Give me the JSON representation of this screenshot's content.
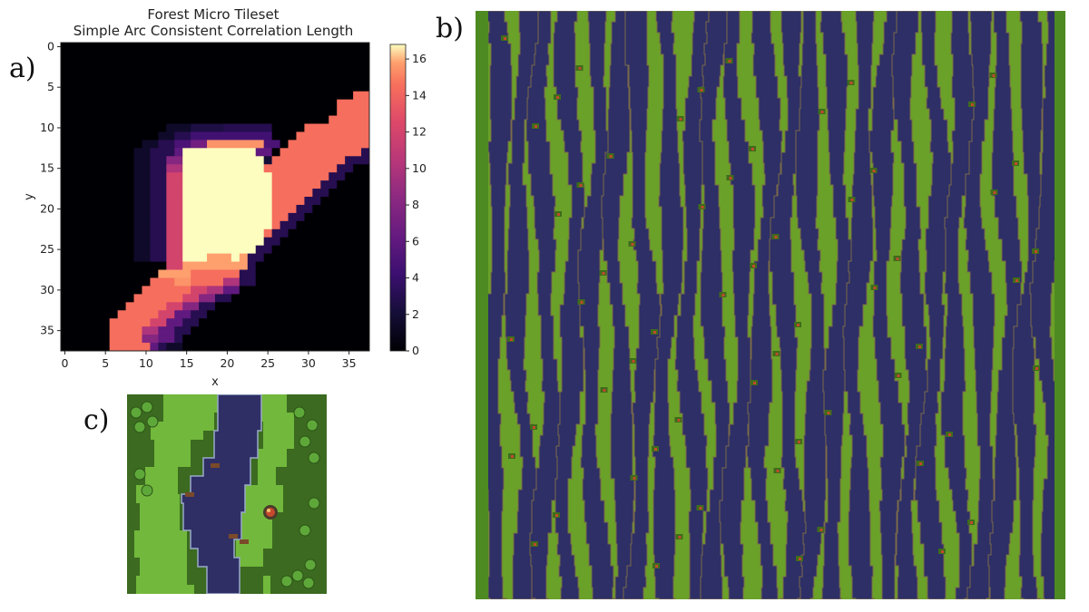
{
  "panel_labels": {
    "a": "a)",
    "b": "b)",
    "c": "c)"
  },
  "chart_data": {
    "type": "heatmap",
    "title": "Forest Micro Tileset",
    "subtitle": "Simple Arc Consistent Correlation Length",
    "xlabel": "x",
    "ylabel": "y",
    "xlim": [
      -0.5,
      37.5
    ],
    "ylim": [
      37.5,
      -0.5
    ],
    "xticks": [
      0,
      5,
      10,
      15,
      20,
      25,
      30,
      35
    ],
    "yticks": [
      0,
      5,
      10,
      15,
      20,
      25,
      30,
      35
    ],
    "colormap": "magma",
    "colorbar": {
      "min": 0,
      "max": 16.8,
      "ticks": [
        0,
        2,
        4,
        6,
        8,
        10,
        12,
        14,
        16
      ]
    },
    "grid": false,
    "shape": [
      38,
      38
    ],
    "row_runs": [
      [
        [
          0,
          38,
          0
        ]
      ],
      [
        [
          0,
          38,
          0
        ]
      ],
      [
        [
          0,
          38,
          0
        ]
      ],
      [
        [
          0,
          38,
          0
        ]
      ],
      [
        [
          0,
          38,
          0
        ]
      ],
      [
        [
          0,
          38,
          0
        ]
      ],
      [
        [
          0,
          36,
          0
        ],
        [
          36,
          38,
          14.5
        ]
      ],
      [
        [
          0,
          34,
          0
        ],
        [
          34,
          38,
          14.5
        ]
      ],
      [
        [
          0,
          34,
          0
        ],
        [
          34,
          38,
          14.5
        ]
      ],
      [
        [
          0,
          33,
          0
        ],
        [
          33,
          38,
          14.5
        ]
      ],
      [
        [
          0,
          13,
          0
        ],
        [
          13,
          16,
          1.5
        ],
        [
          16,
          20,
          2.5
        ],
        [
          20,
          26,
          3
        ],
        [
          26,
          30,
          0
        ],
        [
          30,
          38,
          14.5
        ]
      ],
      [
        [
          0,
          12,
          0
        ],
        [
          12,
          14,
          1.5
        ],
        [
          14,
          16,
          3
        ],
        [
          16,
          26,
          4.5
        ],
        [
          26,
          29,
          0
        ],
        [
          29,
          38,
          14.5
        ]
      ],
      [
        [
          0,
          10,
          0
        ],
        [
          10,
          12,
          1.5
        ],
        [
          12,
          14,
          3
        ],
        [
          14,
          16,
          5
        ],
        [
          16,
          18,
          7
        ],
        [
          18,
          25,
          15.5
        ],
        [
          25,
          27,
          5
        ],
        [
          27,
          28,
          0
        ],
        [
          28,
          38,
          14.5
        ]
      ],
      [
        [
          0,
          9,
          0
        ],
        [
          9,
          11,
          1.5
        ],
        [
          11,
          14,
          3
        ],
        [
          14,
          15,
          6
        ],
        [
          15,
          24,
          16.8
        ],
        [
          24,
          26,
          6
        ],
        [
          26,
          27,
          0
        ],
        [
          27,
          37,
          14.5
        ],
        [
          37,
          38,
          3
        ]
      ],
      [
        [
          0,
          9,
          0
        ],
        [
          9,
          11,
          1.5
        ],
        [
          11,
          13,
          3
        ],
        [
          13,
          15,
          8
        ],
        [
          15,
          25,
          16.8
        ],
        [
          25,
          26,
          2
        ],
        [
          26,
          35,
          14.5
        ],
        [
          35,
          38,
          3
        ]
      ],
      [
        [
          0,
          9,
          0
        ],
        [
          9,
          11,
          1.5
        ],
        [
          11,
          13,
          3
        ],
        [
          13,
          15,
          10
        ],
        [
          15,
          25,
          16.8
        ],
        [
          25,
          34,
          14.5
        ],
        [
          34,
          36,
          3
        ],
        [
          36,
          38,
          0
        ]
      ],
      [
        [
          0,
          9,
          0
        ],
        [
          9,
          11,
          1.5
        ],
        [
          11,
          13,
          3
        ],
        [
          13,
          15,
          12
        ],
        [
          15,
          26,
          16.8
        ],
        [
          26,
          33,
          14.5
        ],
        [
          33,
          35,
          3
        ],
        [
          35,
          38,
          0
        ]
      ],
      [
        [
          0,
          9,
          0
        ],
        [
          9,
          11,
          1.5
        ],
        [
          11,
          13,
          3
        ],
        [
          13,
          15,
          12
        ],
        [
          15,
          26,
          16.8
        ],
        [
          26,
          32,
          14.5
        ],
        [
          32,
          34,
          3
        ],
        [
          34,
          38,
          0
        ]
      ],
      [
        [
          0,
          9,
          0
        ],
        [
          9,
          11,
          1.5
        ],
        [
          11,
          13,
          3
        ],
        [
          13,
          15,
          12
        ],
        [
          15,
          26,
          16.8
        ],
        [
          26,
          31,
          14.5
        ],
        [
          31,
          33,
          3
        ],
        [
          33,
          38,
          0
        ]
      ],
      [
        [
          0,
          9,
          0
        ],
        [
          9,
          11,
          1.5
        ],
        [
          11,
          13,
          3
        ],
        [
          13,
          15,
          12
        ],
        [
          15,
          26,
          16.8
        ],
        [
          26,
          30,
          14.5
        ],
        [
          30,
          32,
          3
        ],
        [
          32,
          38,
          0
        ]
      ],
      [
        [
          0,
          9,
          0
        ],
        [
          9,
          11,
          1.5
        ],
        [
          11,
          13,
          3
        ],
        [
          13,
          15,
          12
        ],
        [
          15,
          26,
          16.8
        ],
        [
          26,
          29,
          14.5
        ],
        [
          29,
          31,
          3
        ],
        [
          31,
          38,
          0
        ]
      ],
      [
        [
          0,
          9,
          0
        ],
        [
          9,
          11,
          1.5
        ],
        [
          11,
          13,
          3
        ],
        [
          13,
          15,
          12
        ],
        [
          15,
          26,
          16.8
        ],
        [
          26,
          28,
          14.5
        ],
        [
          28,
          30,
          3
        ],
        [
          30,
          38,
          0
        ]
      ],
      [
        [
          0,
          9,
          0
        ],
        [
          9,
          11,
          1.5
        ],
        [
          11,
          13,
          3
        ],
        [
          13,
          15,
          12
        ],
        [
          15,
          26,
          16.8
        ],
        [
          26,
          27,
          14.5
        ],
        [
          27,
          29,
          3
        ],
        [
          29,
          38,
          0
        ]
      ],
      [
        [
          0,
          9,
          0
        ],
        [
          9,
          11,
          1.5
        ],
        [
          11,
          13,
          3
        ],
        [
          13,
          15,
          12
        ],
        [
          15,
          25,
          16.8
        ],
        [
          25,
          26,
          14.5
        ],
        [
          26,
          28,
          3
        ],
        [
          28,
          38,
          0
        ]
      ],
      [
        [
          0,
          9,
          0
        ],
        [
          9,
          11,
          1.5
        ],
        [
          11,
          13,
          3
        ],
        [
          13,
          15,
          12
        ],
        [
          15,
          25,
          16.8
        ],
        [
          25,
          27,
          3
        ],
        [
          27,
          38,
          0
        ]
      ],
      [
        [
          0,
          9,
          0
        ],
        [
          9,
          11,
          1.5
        ],
        [
          11,
          13,
          3
        ],
        [
          13,
          15,
          12
        ],
        [
          15,
          24,
          16.8
        ],
        [
          24,
          26,
          3
        ],
        [
          26,
          38,
          0
        ]
      ],
      [
        [
          0,
          9,
          0
        ],
        [
          9,
          11,
          1.5
        ],
        [
          11,
          13,
          3
        ],
        [
          13,
          15,
          12
        ],
        [
          15,
          18,
          16.8
        ],
        [
          18,
          21,
          15.8
        ],
        [
          21,
          22,
          16.8
        ],
        [
          22,
          23,
          15.8
        ],
        [
          23,
          25,
          3
        ],
        [
          25,
          38,
          0
        ]
      ],
      [
        [
          0,
          13,
          0
        ],
        [
          13,
          15,
          12
        ],
        [
          15,
          23,
          15.8
        ],
        [
          23,
          24,
          3
        ],
        [
          24,
          38,
          0
        ]
      ],
      [
        [
          0,
          12,
          0
        ],
        [
          12,
          16,
          15.8
        ],
        [
          16,
          22,
          14.5
        ],
        [
          22,
          24,
          3
        ],
        [
          24,
          38,
          0
        ]
      ],
      [
        [
          0,
          11,
          0
        ],
        [
          11,
          14,
          14.5
        ],
        [
          14,
          16,
          15.5
        ],
        [
          16,
          20,
          14.5
        ],
        [
          20,
          22,
          10
        ],
        [
          22,
          24,
          3
        ],
        [
          24,
          38,
          0
        ]
      ],
      [
        [
          0,
          10,
          0
        ],
        [
          10,
          16,
          14.5
        ],
        [
          16,
          18,
          12
        ],
        [
          18,
          20,
          10
        ],
        [
          20,
          22,
          6
        ],
        [
          22,
          38,
          0
        ]
      ],
      [
        [
          0,
          9,
          0
        ],
        [
          9,
          15,
          14.5
        ],
        [
          15,
          17,
          12
        ],
        [
          17,
          19,
          8
        ],
        [
          19,
          21,
          3
        ],
        [
          21,
          38,
          0
        ]
      ],
      [
        [
          0,
          8,
          0
        ],
        [
          8,
          13,
          14.5
        ],
        [
          13,
          15,
          12
        ],
        [
          15,
          17,
          8
        ],
        [
          17,
          19,
          3
        ],
        [
          19,
          38,
          0
        ]
      ],
      [
        [
          0,
          7,
          0
        ],
        [
          7,
          12,
          14.5
        ],
        [
          12,
          14,
          12
        ],
        [
          14,
          16,
          6
        ],
        [
          16,
          18,
          3
        ],
        [
          18,
          38,
          0
        ]
      ],
      [
        [
          0,
          6,
          0
        ],
        [
          6,
          11,
          14.5
        ],
        [
          11,
          13,
          12
        ],
        [
          13,
          15,
          6
        ],
        [
          15,
          17,
          3
        ],
        [
          17,
          38,
          0
        ]
      ],
      [
        [
          0,
          6,
          0
        ],
        [
          6,
          10,
          14.5
        ],
        [
          10,
          12,
          10
        ],
        [
          12,
          14,
          6
        ],
        [
          14,
          16,
          3
        ],
        [
          16,
          38,
          0
        ]
      ],
      [
        [
          0,
          6,
          0
        ],
        [
          6,
          10,
          14.5
        ],
        [
          10,
          12,
          8
        ],
        [
          12,
          14,
          6
        ],
        [
          14,
          15,
          3
        ],
        [
          15,
          38,
          0
        ]
      ],
      [
        [
          0,
          6,
          0
        ],
        [
          6,
          11,
          14.5
        ],
        [
          11,
          12,
          6
        ],
        [
          12,
          13,
          3
        ],
        [
          13,
          15,
          1.5
        ],
        [
          15,
          38,
          0
        ]
      ]
    ]
  },
  "map_b": {
    "description_colors": {
      "grass": "#6aa128",
      "water": "#2d2f66",
      "edge": "#8a6a3a",
      "border": "#3d7a1e"
    },
    "stripe_count": 24,
    "stripe_centers": [
      22,
      50,
      76,
      104,
      131,
      158,
      183,
      211,
      240,
      263,
      290,
      318,
      345,
      371,
      398,
      423,
      452,
      479,
      505,
      531,
      557,
      584,
      610,
      632
    ]
  },
  "map_c": {
    "colors": {
      "forest": "#3b6a20",
      "grass": "#72b83c",
      "water": "#2f2f66",
      "shore": "#9aa9c8"
    }
  }
}
